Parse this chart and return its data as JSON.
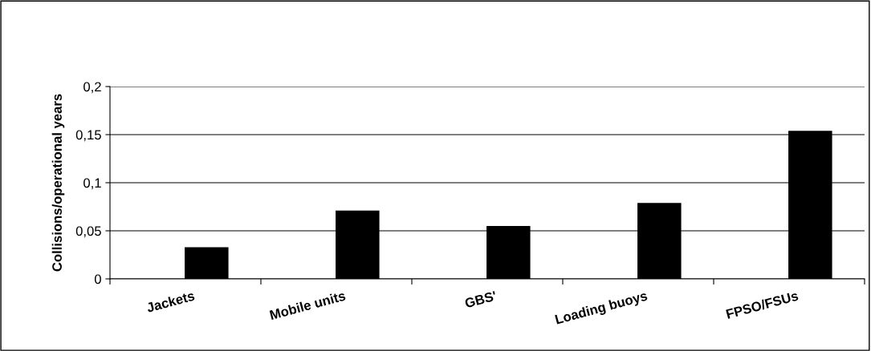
{
  "chart_data": {
    "type": "bar",
    "ylabel": "Collisions/operational years",
    "categories": [
      "Jackets",
      "Mobile units",
      "GBS'",
      "Loading buoys",
      "FPSO/FSUs"
    ],
    "values": [
      0.033,
      0.071,
      0.055,
      0.079,
      0.154
    ],
    "color": "#000000",
    "ylim": [
      0,
      0.2
    ],
    "yticks": [
      {
        "value": 0,
        "label": "0"
      },
      {
        "value": 0.05,
        "label": "0,05"
      },
      {
        "value": 0.1,
        "label": "0,1"
      },
      {
        "value": 0.15,
        "label": "0,15"
      },
      {
        "value": 0.2,
        "label": "0,2"
      }
    ],
    "grid": "y"
  }
}
